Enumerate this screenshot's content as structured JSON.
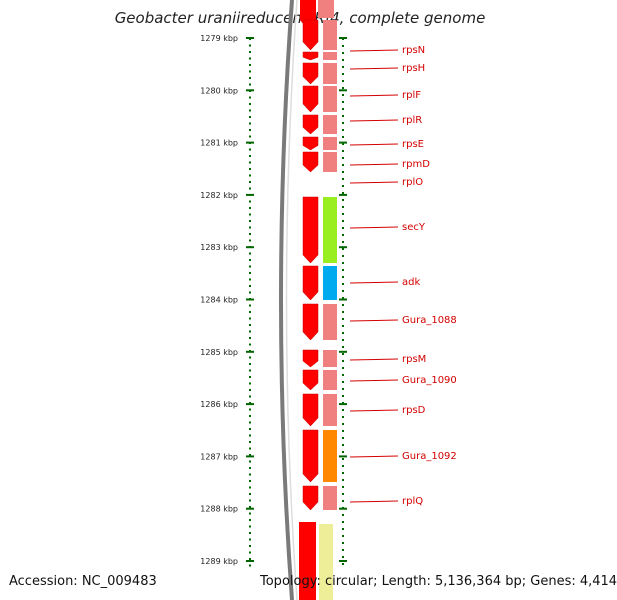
{
  "title": "Geobacter uraniireducens Rf4, complete genome",
  "footer": {
    "accession": "Accession: NC_009483",
    "summary": "Topology: circular; Length: 5,136,364 bp; Genes: 4,414"
  },
  "ruler": {
    "unit": "kbp",
    "labels": [
      "1279 kbp",
      "1280 kbp",
      "1281 kbp",
      "1282 kbp",
      "1283 kbp",
      "1284 kbp",
      "1285 kbp",
      "1286 kbp",
      "1287 kbp",
      "1288 kbp",
      "1289 kbp"
    ]
  },
  "genes": [
    {
      "name": "rpsN",
      "color": "#f08080"
    },
    {
      "name": "rpsH",
      "color": "#f08080"
    },
    {
      "name": "rplF",
      "color": "#f08080"
    },
    {
      "name": "rplR",
      "color": "#f08080"
    },
    {
      "name": "rpsE",
      "color": "#f08080"
    },
    {
      "name": "rpmD",
      "color": "#f08080"
    },
    {
      "name": "rplO",
      "color": "#f08080"
    },
    {
      "name": "secY",
      "color": "#99ee22"
    },
    {
      "name": "adk",
      "color": "#00aaee"
    },
    {
      "name": "Gura_1088",
      "color": "#f08080"
    },
    {
      "name": "rpsM",
      "color": "#f08080"
    },
    {
      "name": "Gura_1090",
      "color": "#f08080"
    },
    {
      "name": "rpsD",
      "color": "#f08080"
    },
    {
      "name": "Gura_1092",
      "color": "#ff8800"
    },
    {
      "name": "rplQ",
      "color": "#f08080"
    }
  ],
  "colors": {
    "arrow_red": "#ff0000",
    "tick_green": "#006600",
    "label_red": "#d40000",
    "backbone_gray": "#7a7a7a",
    "partial_gene_yellow": "#eeee99"
  }
}
